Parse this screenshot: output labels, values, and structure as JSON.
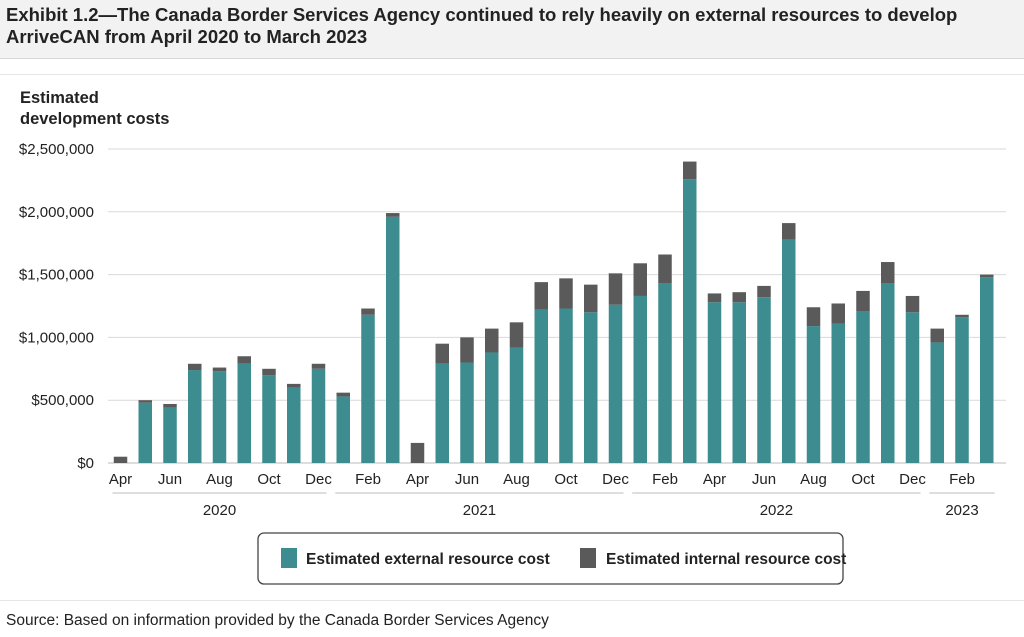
{
  "title": "Exhibit 1.2—The Canada Border Services Agency continued to rely heavily on external resources to develop ArriveCAN from April 2020 to March 2023",
  "source": "Source: Based on information provided by the Canada Border Services Agency",
  "colors": {
    "external": "#3d8c8f",
    "internal": "#5a5a5a",
    "grid": "#d9d9d9",
    "text": "#222222"
  },
  "chart_data": {
    "type": "bar",
    "stacked": true,
    "ylabel_lines": [
      "Estimated",
      "development costs"
    ],
    "y_tick_labels": [
      "$0",
      "$500,000",
      "$1,000,000",
      "$1,500,000",
      "$2,000,000",
      "$2,500,000"
    ],
    "ylim": [
      0,
      2500000
    ],
    "grid": true,
    "categories": [
      "Apr 2020",
      "May 2020",
      "Jun 2020",
      "Jul 2020",
      "Aug 2020",
      "Sep 2020",
      "Oct 2020",
      "Nov 2020",
      "Dec 2020",
      "Jan 2021",
      "Feb 2021",
      "Mar 2021",
      "Apr 2021",
      "May 2021",
      "Jun 2021",
      "Jul 2021",
      "Aug 2021",
      "Sep 2021",
      "Oct 2021",
      "Nov 2021",
      "Dec 2021",
      "Jan 2022",
      "Feb 2022",
      "Mar 2022",
      "Apr 2022",
      "May 2022",
      "Jun 2022",
      "Jul 2022",
      "Aug 2022",
      "Sep 2022",
      "Oct 2022",
      "Nov 2022",
      "Dec 2022",
      "Jan 2023",
      "Feb 2023",
      "Mar 2023"
    ],
    "x_tick_labels": [
      "Apr",
      "",
      "Jun",
      "",
      "Aug",
      "",
      "Oct",
      "",
      "Dec",
      "",
      "Feb",
      "",
      "Apr",
      "",
      "Jun",
      "",
      "Aug",
      "",
      "Oct",
      "",
      "Dec",
      "",
      "Feb",
      "",
      "Apr",
      "",
      "Jun",
      "",
      "Aug",
      "",
      "Oct",
      "",
      "Dec",
      "",
      "Feb",
      ""
    ],
    "year_groups": [
      {
        "label": "2020",
        "start": 0,
        "end": 8
      },
      {
        "label": "2021",
        "start": 9,
        "end": 20
      },
      {
        "label": "2022",
        "start": 21,
        "end": 32
      },
      {
        "label": "2023",
        "start": 33,
        "end": 35
      }
    ],
    "series": [
      {
        "name": "Estimated external resource cost",
        "values": [
          0,
          480000,
          440000,
          740000,
          730000,
          790000,
          700000,
          600000,
          750000,
          530000,
          1180000,
          1960000,
          0,
          790000,
          800000,
          880000,
          920000,
          1220000,
          1230000,
          1200000,
          1260000,
          1330000,
          1430000,
          2260000,
          1280000,
          1280000,
          1320000,
          1780000,
          1090000,
          1110000,
          1210000,
          1430000,
          1200000,
          960000,
          1160000,
          1480000
        ]
      },
      {
        "name": "Estimated internal resource cost",
        "values": [
          50000,
          20000,
          30000,
          50000,
          30000,
          60000,
          50000,
          30000,
          40000,
          30000,
          50000,
          30000,
          160000,
          160000,
          200000,
          190000,
          200000,
          220000,
          240000,
          220000,
          250000,
          260000,
          230000,
          140000,
          70000,
          80000,
          90000,
          130000,
          150000,
          160000,
          160000,
          170000,
          130000,
          110000,
          20000,
          20000
        ]
      }
    ]
  }
}
